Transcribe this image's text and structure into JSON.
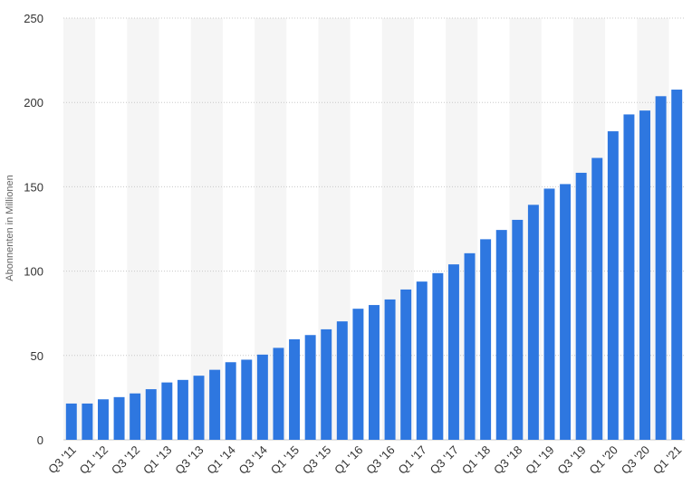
{
  "chart_data": {
    "type": "bar",
    "title": "",
    "xlabel": "",
    "ylabel": "Abonnenten in Millionen",
    "ylim": [
      0,
      250
    ],
    "yticks": [
      0,
      50,
      100,
      150,
      200,
      250
    ],
    "grid": true,
    "bar_color": "#2e77e0",
    "band_color": "#f5f5f5",
    "categories": [
      "Q3 '11",
      "Q4 '11",
      "Q1 '12",
      "Q2 '12",
      "Q3 '12",
      "Q4 '12",
      "Q1 '13",
      "Q2 '13",
      "Q3 '13",
      "Q4 '13",
      "Q1 '14",
      "Q2 '14",
      "Q3 '14",
      "Q4 '14",
      "Q1 '15",
      "Q2 '15",
      "Q3 '15",
      "Q4 '15",
      "Q1 '16",
      "Q2 '16",
      "Q3 '16",
      "Q4 '16",
      "Q1 '17",
      "Q2 '17",
      "Q3 '17",
      "Q4 '17",
      "Q1 '18",
      "Q2 '18",
      "Q3 '18",
      "Q4 '18",
      "Q1 '19",
      "Q2 '19",
      "Q3 '19",
      "Q4 '19",
      "Q1 '20",
      "Q2 '20",
      "Q3 '20",
      "Q4 '20",
      "Q1 '21"
    ],
    "visible_tick_labels": [
      "Q3 '11",
      "Q1 '12",
      "Q3 '12",
      "Q1 '13",
      "Q3 '13",
      "Q1 '14",
      "Q3 '14",
      "Q1 '15",
      "Q3 '15",
      "Q1 '16",
      "Q3 '16",
      "Q1 '17",
      "Q3 '17",
      "Q1 '18",
      "Q3 '18",
      "Q1 '19",
      "Q3 '19",
      "Q1 '20",
      "Q3 '20",
      "Q1 '21"
    ],
    "values": [
      21.5,
      21.5,
      24,
      25.3,
      27.5,
      30,
      34,
      35.5,
      38,
      41.5,
      46,
      47.5,
      50.5,
      54.5,
      59.6,
      62.1,
      65.5,
      70.2,
      77.7,
      79.9,
      83.2,
      89.1,
      93.8,
      98.8,
      104,
      110.6,
      118.9,
      124.4,
      130.4,
      139.3,
      148.9,
      151.6,
      158.3,
      167.1,
      182.9,
      192.9,
      195.2,
      203.7,
      207.6
    ]
  }
}
